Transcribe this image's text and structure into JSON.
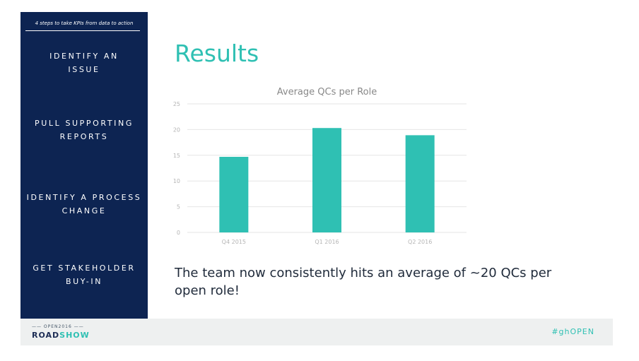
{
  "sidebar": {
    "header": "4 steps to take KPIs from data to action",
    "steps": [
      {
        "line1": "IDENTIFY AN",
        "line2": "ISSUE"
      },
      {
        "line1": "PULL SUPPORTING",
        "line2": "REPORTS"
      },
      {
        "line1": "IDENTIFY A PROCESS",
        "line2": "CHANGE"
      },
      {
        "line1": "GET STAKEHOLDER",
        "line2": "BUY-IN"
      }
    ]
  },
  "main": {
    "title": "Results",
    "summary": "The team now consistently hits an average of ~20 QCs per open role!"
  },
  "chart_data": {
    "type": "bar",
    "title": "Average QCs per Role",
    "categories": [
      "Q4 2015",
      "Q1 2016",
      "Q2 2016"
    ],
    "values": [
      14.7,
      20.3,
      18.9
    ],
    "xlabel": "",
    "ylabel": "",
    "ylim": [
      0,
      25
    ],
    "yticks": [
      0,
      5,
      10,
      15,
      20,
      25
    ],
    "grid": true,
    "bar_color": "#2fc0b3"
  },
  "footer": {
    "event_label": "OPEN2016",
    "brand_part1": "ROAD",
    "brand_part2": "SHOW",
    "hashtag": "#ghOPEN"
  },
  "colors": {
    "sidebar_bg": "#0d2452",
    "accent": "#2fc0b3",
    "footer_bg": "#eef0f0"
  }
}
